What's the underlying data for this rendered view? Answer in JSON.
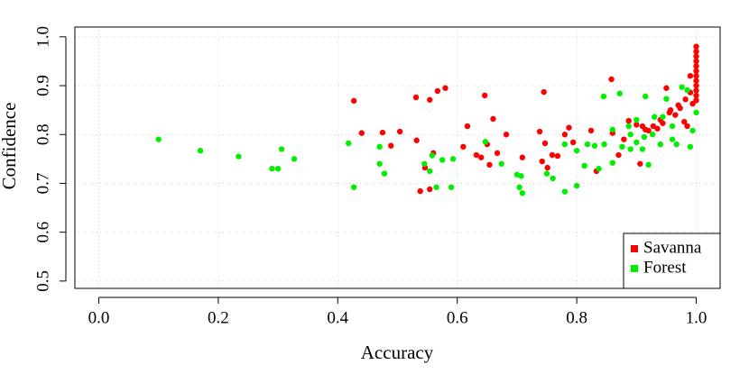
{
  "chart_data": {
    "type": "scatter",
    "x_label": "Accuracy",
    "y_label": "Confidence",
    "xlim": [
      -0.04,
      1.04
    ],
    "ylim": [
      0.485,
      1.02
    ],
    "xticks": [
      {
        "value": 0,
        "label": "0.0"
      },
      0.2,
      0.4,
      0.6,
      0.8,
      {
        "value": 1,
        "label": "1.0"
      }
    ],
    "yticks": [
      0.5,
      0.6,
      0.7,
      0.8,
      0.9,
      {
        "value": 1,
        "label": "1.0"
      }
    ],
    "grid": true,
    "legend_position": "bottomright",
    "series": [
      {
        "name": "Savanna",
        "color": "#ff0000",
        "x": [
          0.427,
          0.44,
          0.475,
          0.489,
          0.504,
          0.531,
          0.532,
          0.538,
          0.546,
          0.554,
          0.554,
          0.56,
          0.567,
          0.58,
          0.61,
          0.617,
          0.632,
          0.64,
          0.646,
          0.65,
          0.654,
          0.66,
          0.667,
          0.682,
          0.709,
          0.738,
          0.742,
          0.745,
          0.747,
          0.751,
          0.759,
          0.768,
          0.78,
          0.787,
          0.794,
          0.824,
          0.833,
          0.858,
          0.86,
          0.87,
          0.879,
          0.887,
          0.906,
          0.91,
          0.92,
          0.928,
          0.935,
          0.944,
          0.95,
          0.957,
          0.965,
          0.973,
          0.98,
          0.985,
          0.99,
          0.994,
          0.99,
          0.982,
          1,
          1,
          1,
          1,
          1,
          1,
          1,
          1,
          1,
          1,
          1,
          1,
          0.9,
          0.915,
          0.94,
          0.955,
          0.97
        ],
        "y": [
          0.869,
          0.803,
          0.804,
          0.777,
          0.806,
          0.876,
          0.788,
          0.684,
          0.732,
          0.871,
          0.688,
          0.762,
          0.889,
          0.895,
          0.775,
          0.817,
          0.758,
          0.753,
          0.88,
          0.78,
          0.738,
          0.832,
          0.762,
          0.8,
          0.753,
          0.806,
          0.745,
          0.887,
          0.782,
          0.732,
          0.758,
          0.756,
          0.8,
          0.814,
          0.784,
          0.808,
          0.725,
          0.913,
          0.803,
          0.758,
          0.79,
          0.828,
          0.74,
          0.817,
          0.808,
          0.817,
          0.812,
          0.823,
          0.895,
          0.85,
          0.84,
          0.854,
          0.826,
          0.817,
          0.886,
          0.863,
          0.92,
          0.872,
          0.98,
          0.97,
          0.96,
          0.95,
          0.94,
          0.93,
          0.92,
          0.91,
          0.9,
          0.89,
          0.88,
          0.87,
          0.82,
          0.81,
          0.83,
          0.845,
          0.86
        ]
      },
      {
        "name": "Forest",
        "color": "#00ee00",
        "x": [
          0.1,
          0.17,
          0.234,
          0.29,
          0.3,
          0.306,
          0.327,
          0.418,
          0.427,
          0.47,
          0.47,
          0.478,
          0.545,
          0.554,
          0.558,
          0.565,
          0.575,
          0.59,
          0.593,
          0.647,
          0.674,
          0.7,
          0.704,
          0.709,
          0.707,
          0.75,
          0.76,
          0.78,
          0.78,
          0.8,
          0.8,
          0.813,
          0.83,
          0.837,
          0.845,
          0.846,
          0.86,
          0.872,
          0.876,
          0.89,
          0.9,
          0.91,
          0.915,
          0.92,
          0.93,
          0.94,
          0.95,
          0.96,
          0.967,
          0.976,
          0.985,
          0.994,
          1,
          0.99,
          0.9,
          0.887,
          0.944,
          0.913,
          0.86,
          0.818,
          0.927,
          0.96,
          0.89
        ],
        "y": [
          0.79,
          0.767,
          0.755,
          0.73,
          0.73,
          0.77,
          0.75,
          0.782,
          0.692,
          0.74,
          0.775,
          0.72,
          0.74,
          0.725,
          0.757,
          0.692,
          0.748,
          0.692,
          0.75,
          0.785,
          0.74,
          0.718,
          0.692,
          0.68,
          0.715,
          0.72,
          0.71,
          0.683,
          0.78,
          0.767,
          0.695,
          0.736,
          0.777,
          0.73,
          0.878,
          0.78,
          0.742,
          0.884,
          0.775,
          0.8,
          0.784,
          0.77,
          0.878,
          0.738,
          0.836,
          0.78,
          0.873,
          0.817,
          0.78,
          0.897,
          0.891,
          0.808,
          0.845,
          0.775,
          0.83,
          0.817,
          0.836,
          0.795,
          0.81,
          0.78,
          0.8,
          0.79,
          0.77
        ]
      }
    ]
  }
}
